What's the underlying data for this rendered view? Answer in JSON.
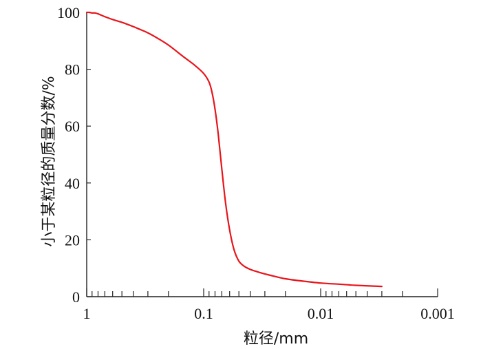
{
  "chart_data": {
    "type": "line",
    "title": "",
    "xlabel": "粒径/mm",
    "ylabel": "小于某粒径的质量分数/%",
    "x_scale": "log",
    "x_reversed": true,
    "xlim": [
      1,
      0.001
    ],
    "ylim": [
      0,
      100
    ],
    "x_ticks": [
      "1",
      "0.1",
      "0.01",
      "0.001"
    ],
    "y_ticks": [
      "0",
      "20",
      "40",
      "60",
      "80",
      "100"
    ],
    "grid": false,
    "legend": "none",
    "series": [
      {
        "color": "#e8141a",
        "x": [
          1.0,
          0.95,
          0.9,
          0.85,
          0.8,
          0.75,
          0.7,
          0.6,
          0.5,
          0.4,
          0.35,
          0.3,
          0.25,
          0.2,
          0.15,
          0.12,
          0.1,
          0.09,
          0.085,
          0.08,
          0.075,
          0.07,
          0.065,
          0.06,
          0.055,
          0.05,
          0.045,
          0.04,
          0.035,
          0.03,
          0.025,
          0.02,
          0.015,
          0.01,
          0.007,
          0.005,
          0.003
        ],
        "y": [
          100,
          100,
          99.8,
          99.8,
          99.5,
          99.0,
          98.5,
          97.5,
          96.5,
          95.0,
          94.0,
          92.8,
          91.0,
          88.5,
          84.5,
          81.5,
          78.5,
          75.5,
          72.0,
          66.0,
          57.0,
          45.0,
          33.0,
          23.5,
          16.5,
          12.5,
          10.7,
          9.6,
          8.8,
          8.0,
          7.2,
          6.3,
          5.6,
          4.8,
          4.4,
          4.0,
          3.6
        ]
      }
    ]
  }
}
